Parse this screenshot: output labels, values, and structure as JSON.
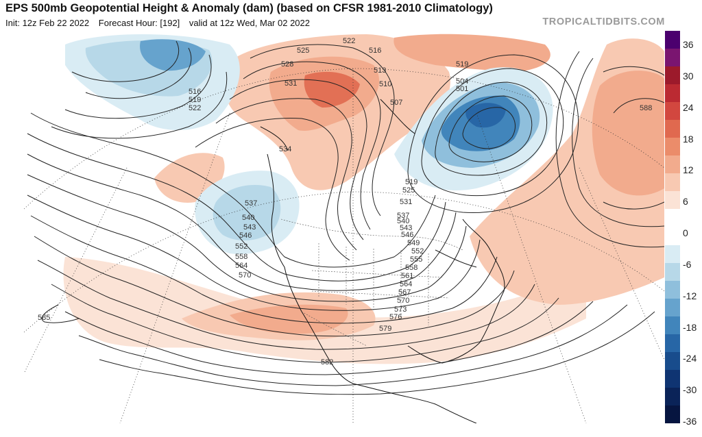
{
  "header": {
    "title": "EPS 500mb Geopotential Height & Anomaly (dam) (based on CFSR 1981-2010 Climatology)",
    "init": "Init: 12z Feb 22 2022",
    "forecast_hour": "Forecast Hour: [192]",
    "valid": "valid at 12z Wed, Mar 02 2022",
    "credit": "TROPICALTIDBITS.COM"
  },
  "colorbar": {
    "ticks": [
      "36",
      "30",
      "24",
      "18",
      "12",
      "6",
      "0",
      "-6",
      "-12",
      "-18",
      "-24",
      "-30",
      "-36"
    ],
    "colors": [
      "#4b006e",
      "#7a1570",
      "#9c1a2b",
      "#bb2a32",
      "#d2473f",
      "#e0694f",
      "#eb8c6a",
      "#f2ab8d",
      "#f8c9b2",
      "#fbe3d6",
      "#ffffff",
      "#ffffff",
      "#d9ecf4",
      "#b7d8e8",
      "#8fbfdc",
      "#66a3cd",
      "#4185bb",
      "#2766a6",
      "#184c8c",
      "#0f3472",
      "#0a2358",
      "#061540"
    ]
  },
  "map": {
    "contour_labels": [
      "516",
      "519",
      "522",
      "525",
      "528",
      "531",
      "534",
      "537",
      "540",
      "543",
      "546",
      "552",
      "558",
      "564",
      "570",
      "585",
      "582",
      "579",
      "576",
      "573",
      "570",
      "567",
      "564",
      "561",
      "558",
      "555",
      "552",
      "549",
      "546",
      "543",
      "540",
      "537",
      "531",
      "525",
      "519",
      "510",
      "507",
      "504",
      "501",
      "513",
      "516",
      "522",
      "519",
      "588"
    ],
    "anomalies": [
      {
        "name": "bering-low",
        "sign": "negative"
      },
      {
        "name": "pacific-nw-low",
        "sign": "negative"
      },
      {
        "name": "greenland-baffin-low",
        "sign": "negative"
      },
      {
        "name": "alaska-yukon-ridge",
        "sign": "positive"
      },
      {
        "name": "atlantic-ridge",
        "sign": "positive"
      },
      {
        "name": "southern-us-ridge",
        "sign": "positive"
      },
      {
        "name": "subtropical-pacific-ridge",
        "sign": "positive"
      }
    ]
  }
}
